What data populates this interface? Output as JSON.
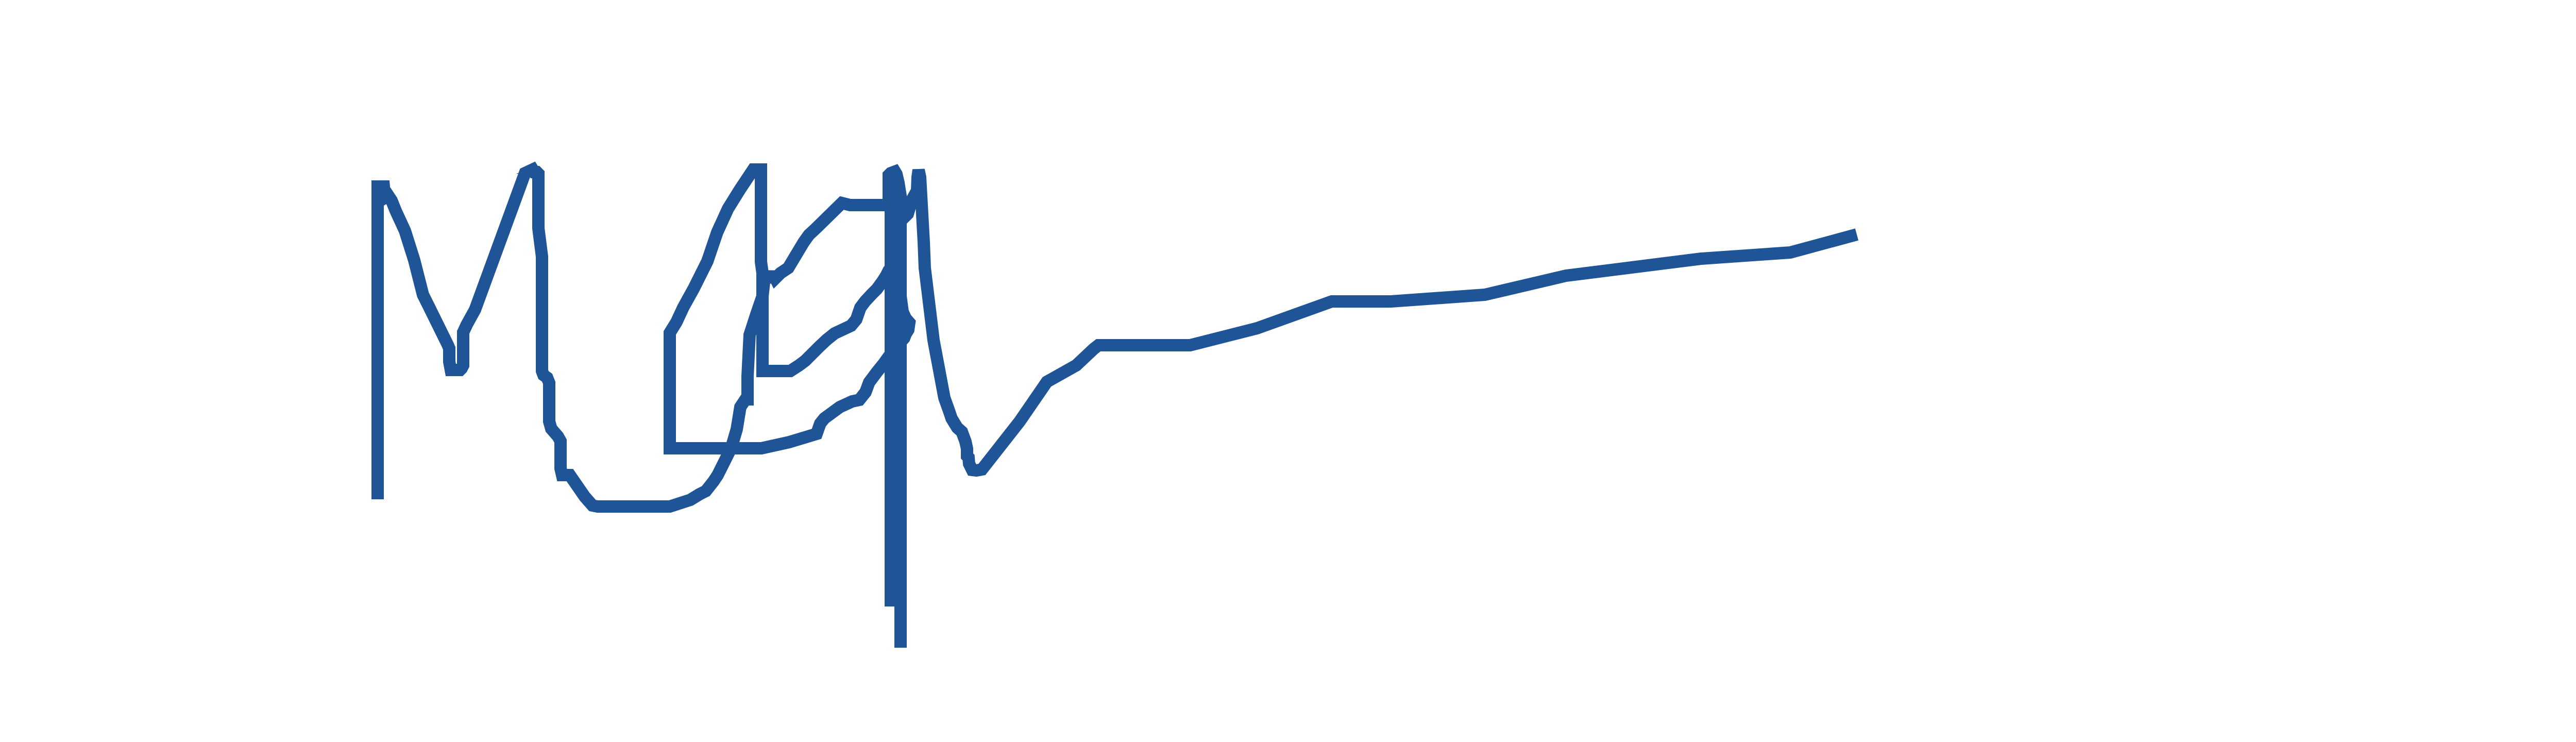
{
  "chart_data": {
    "type": "line",
    "title": "",
    "xlabel": "",
    "ylabel": "",
    "axes_visible": false,
    "grid": false,
    "legend": "none",
    "xlim": [
      0,
      5040
    ],
    "ylim": [
      0,
      1440
    ],
    "series": [
      {
        "color": "#1f5597",
        "points": [
          [
            733,
            969
          ],
          [
            733,
            362
          ],
          [
            745,
            362
          ],
          [
            747,
            384
          ],
          [
            754,
            380
          ],
          [
            760,
            389
          ],
          [
            768,
            409
          ],
          [
            786,
            448
          ],
          [
            804,
            505
          ],
          [
            821,
            572
          ],
          [
            833,
            596
          ],
          [
            869,
            669
          ],
          [
            872,
            676
          ],
          [
            872,
            702
          ],
          [
            875,
            718
          ],
          [
            893,
            718
          ],
          [
            896,
            715
          ],
          [
            899,
            709
          ],
          [
            899,
            645
          ],
          [
            906,
            630
          ],
          [
            922,
            601
          ],
          [
            1019,
            336
          ],
          [
            1034,
            329
          ],
          [
            1037,
            334
          ],
          [
            1042,
            334
          ],
          [
            1045,
            337
          ],
          [
            1045,
            443
          ],
          [
            1052,
            498
          ],
          [
            1052,
            720
          ],
          [
            1055,
            728
          ],
          [
            1062,
            733
          ],
          [
            1066,
            743
          ],
          [
            1066,
            818
          ],
          [
            1070,
            832
          ],
          [
            1083,
            847
          ],
          [
            1088,
            856
          ],
          [
            1088,
            909
          ],
          [
            1091,
            922
          ],
          [
            1106,
            922
          ],
          [
            1135,
            964
          ],
          [
            1150,
            981
          ],
          [
            1160,
            983
          ],
          [
            1300,
            983
          ],
          [
            1340,
            970
          ],
          [
            1358,
            959
          ],
          [
            1370,
            953
          ],
          [
            1385,
            934
          ],
          [
            1393,
            922
          ],
          [
            1405,
            898
          ],
          [
            1416,
            876
          ],
          [
            1420,
            867
          ],
          [
            1430,
            833
          ],
          [
            1437,
            790
          ],
          [
            1447,
            775
          ],
          [
            1451,
            775
          ],
          [
            1451,
            730
          ],
          [
            1455,
            650
          ],
          [
            1468,
            610
          ],
          [
            1480,
            575
          ],
          [
            1485,
            530
          ],
          [
            1492,
            545
          ],
          [
            1500,
            530
          ],
          [
            1505,
            540
          ],
          [
            1515,
            530
          ],
          [
            1530,
            520
          ],
          [
            1560,
            470
          ],
          [
            1570,
            456
          ],
          [
            1584,
            443
          ],
          [
            1634,
            394
          ],
          [
            1650,
            398
          ],
          [
            1735,
            398
          ],
          [
            1740,
            408
          ],
          [
            1745,
            395
          ],
          [
            1747,
            415
          ],
          [
            1750,
            427
          ],
          [
            1757,
            420
          ],
          [
            1762,
            415
          ],
          [
            1770,
            388
          ],
          [
            1780,
            370
          ],
          [
            1781,
            344
          ],
          [
            1783,
            330
          ],
          [
            1786,
            344
          ],
          [
            1793,
            470
          ],
          [
            1795,
            520
          ],
          [
            1812,
            660
          ],
          [
            1833,
            772
          ],
          [
            1843,
            800
          ],
          [
            1847,
            812
          ],
          [
            1858,
            830
          ],
          [
            1867,
            838
          ],
          [
            1874,
            857
          ],
          [
            1877,
            871
          ],
          [
            1877,
            885
          ],
          [
            1880,
            888
          ],
          [
            1881,
            900
          ],
          [
            1887,
            912
          ],
          [
            1895,
            913
          ],
          [
            1906,
            911
          ],
          [
            1979,
            818
          ],
          [
            2032,
            741
          ],
          [
            2089,
            709
          ],
          [
            2123,
            677
          ],
          [
            2132,
            670
          ],
          [
            2310,
            670
          ],
          [
            2440,
            637
          ],
          [
            2585,
            585
          ],
          [
            2700,
            585
          ],
          [
            2882,
            572
          ],
          [
            3040,
            535
          ],
          [
            3302,
            502
          ],
          [
            3475,
            490
          ],
          [
            3604,
            455
          ]
        ]
      },
      {
        "color": "#1f5597",
        "points": [
          [
            1015,
            336
          ],
          [
            1015,
            337
          ]
        ]
      },
      {
        "color": "#1f5597",
        "points": [
          [
            1300,
            646
          ],
          [
            1300,
            870
          ],
          [
            1306,
            870
          ],
          [
            1478,
            870
          ],
          [
            1532,
            858
          ],
          [
            1585,
            842
          ],
          [
            1592,
            822
          ],
          [
            1600,
            812
          ],
          [
            1630,
            790
          ],
          [
            1654,
            779
          ],
          [
            1668,
            776
          ],
          [
            1680,
            761
          ],
          [
            1687,
            742
          ],
          [
            1702,
            722
          ],
          [
            1715,
            706
          ],
          [
            1725,
            692
          ],
          [
            1741,
            676
          ],
          [
            1748,
            664
          ],
          [
            1755,
            656
          ],
          [
            1758,
            648
          ],
          [
            1763,
            640
          ],
          [
            1765,
            626
          ],
          [
            1758,
            618
          ],
          [
            1752,
            605
          ],
          [
            1748,
            575
          ],
          [
            1745,
            553
          ],
          [
            1745,
            520
          ],
          [
            1742,
            500
          ],
          [
            1742,
            469
          ],
          [
            1741,
            459
          ],
          [
            1738,
            455
          ],
          [
            1731,
            440
          ],
          [
            1729,
            428
          ],
          [
            1729,
            410
          ],
          [
            1725,
            393
          ],
          [
            1725,
            340
          ],
          [
            1729,
            336
          ],
          [
            1737,
            333
          ],
          [
            1740,
            338
          ],
          [
            1744,
            355
          ],
          [
            1746,
            368
          ],
          [
            1748,
            380
          ],
          [
            1748,
            400
          ],
          [
            1748,
            500
          ],
          [
            1748,
            1257
          ]
        ]
      },
      {
        "color": "#1f5597",
        "points": [
          [
            1300,
            870
          ],
          [
            1300,
            646
          ],
          [
            1313,
            625
          ],
          [
            1326,
            597
          ],
          [
            1347,
            559
          ],
          [
            1373,
            507
          ],
          [
            1392,
            451
          ],
          [
            1413,
            405
          ],
          [
            1436,
            368
          ],
          [
            1450,
            347
          ],
          [
            1462,
            329
          ],
          [
            1477,
            329
          ],
          [
            1477,
            358
          ],
          [
            1477,
            508
          ],
          [
            1480,
            530
          ],
          [
            1480,
            720
          ],
          [
            1492,
            720
          ],
          [
            1534,
            720
          ],
          [
            1551,
            709
          ],
          [
            1563,
            700
          ],
          [
            1575,
            688
          ],
          [
            1590,
            673
          ],
          [
            1605,
            659
          ],
          [
            1620,
            647
          ],
          [
            1652,
            632
          ],
          [
            1662,
            620
          ],
          [
            1670,
            597
          ],
          [
            1679,
            585
          ],
          [
            1692,
            571
          ],
          [
            1702,
            561
          ],
          [
            1713,
            546
          ],
          [
            1720,
            535
          ],
          [
            1725,
            525
          ],
          [
            1730,
            520
          ],
          [
            1732,
            510
          ],
          [
            1732,
            493
          ],
          [
            1732,
            420
          ],
          [
            1729,
            418
          ],
          [
            1729,
            1177
          ]
        ]
      }
    ]
  }
}
